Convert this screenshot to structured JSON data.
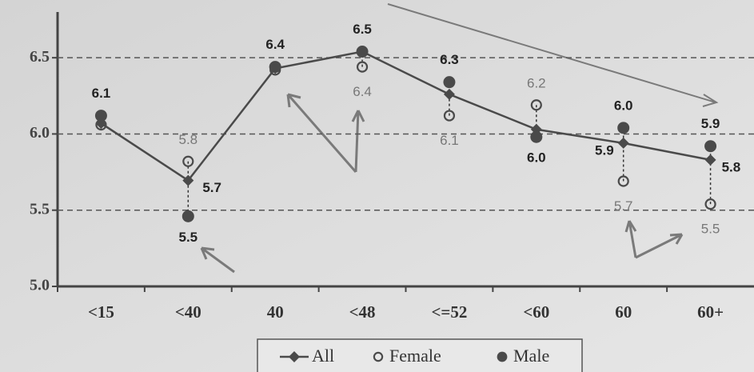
{
  "chart_data": {
    "type": "line",
    "categories": [
      "<15",
      "<40",
      "40",
      "<48",
      "<=52",
      "<60",
      "60",
      "60+"
    ],
    "ylim": [
      5.0,
      6.8
    ],
    "yticks": [
      {
        "value": 5,
        "label": "5.0"
      },
      5.5,
      {
        "value": 6,
        "label": "6.0"
      },
      6.5
    ],
    "grid": true,
    "legend": "bottom",
    "series": [
      {
        "name": "All",
        "color": "#4a4a4a",
        "marker": "diamond",
        "values": [
          6.07,
          5.695,
          6.43,
          6.54,
          6.26,
          6.03,
          5.94,
          5.83
        ],
        "value_labels": [
          null,
          "5.7",
          null,
          null,
          null,
          null,
          "5.9",
          "5.8"
        ]
      },
      {
        "name": "Female",
        "color": "#4a4a4a",
        "marker": "open-circle",
        "values": [
          6.06,
          5.82,
          6.42,
          6.44,
          6.12,
          6.19,
          5.69,
          5.54
        ],
        "value_labels": [
          null,
          "5.8",
          null,
          "6.4",
          "6.1",
          "6.2",
          "5.7",
          "5.5"
        ]
      },
      {
        "name": "Male",
        "color": "#4a4a4a",
        "marker": "filled-circle",
        "values": [
          6.12,
          5.46,
          6.44,
          6.54,
          6.34,
          5.98,
          6.04,
          5.92
        ],
        "value_labels": [
          "6.1",
          "5.5",
          "6.4",
          "6.5",
          "6.3",
          "6.0",
          "6.0",
          "5.9"
        ]
      }
    ]
  }
}
